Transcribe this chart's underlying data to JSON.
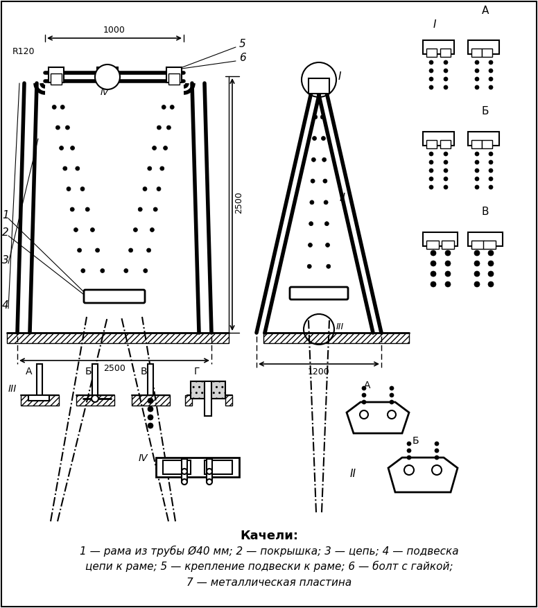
{
  "title": "Качели:",
  "caption_line1": "1 — рама из трубы Ø40 мм; 2 — покрышка; 3 — цепь; 4 — подвеска",
  "caption_line2": "цепи к раме; 5 — крепление подвески к раме; 6 — болт с гайкой;",
  "caption_line3": "7 — металлическая пластина",
  "bg_color": "#ffffff",
  "line_color": "#000000",
  "label_R120": "R120",
  "label_1000": "1000",
  "label_2500_h": "2500",
  "label_2500_w": "2500",
  "label_1200": "1200",
  "roman_labels": [
    "I",
    "II",
    "III",
    "IV"
  ],
  "alpha_labels_III": [
    "А",
    "Б",
    "В",
    "Г"
  ],
  "alpha_labels_right": [
    "А",
    "Б"
  ],
  "alpha_labels_top": [
    "А"
  ],
  "roman_right": [
    "I",
    "II",
    "III"
  ],
  "roman_bottom": [
    "IV",
    "II"
  ]
}
